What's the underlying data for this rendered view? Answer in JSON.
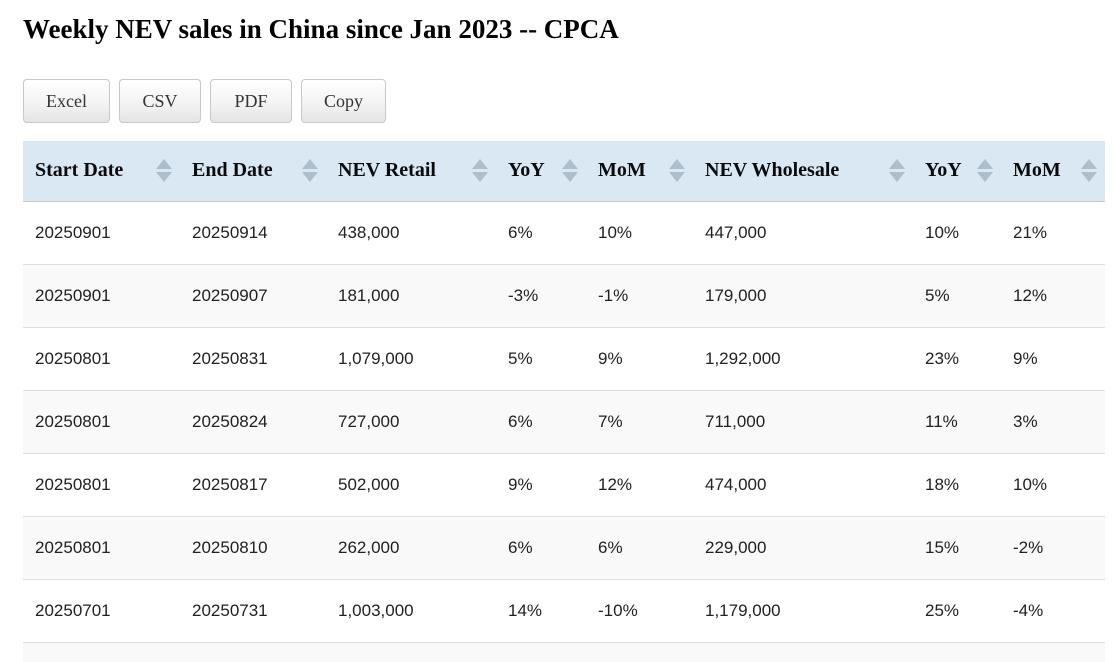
{
  "page": {
    "title": "Weekly NEV sales in China since Jan 2023 -- CPCA"
  },
  "toolbar": {
    "buttons": [
      {
        "key": "excel",
        "label": "Excel"
      },
      {
        "key": "csv",
        "label": "CSV"
      },
      {
        "key": "pdf",
        "label": "PDF"
      },
      {
        "key": "copy",
        "label": "Copy"
      }
    ]
  },
  "table": {
    "columns": [
      {
        "key": "start-date",
        "label": "Start Date",
        "sortable": true
      },
      {
        "key": "end-date",
        "label": "End Date",
        "sortable": true
      },
      {
        "key": "nev-retail",
        "label": "NEV Retail",
        "sortable": true
      },
      {
        "key": "yoy-retail",
        "label": "YoY",
        "sortable": true
      },
      {
        "key": "mom-retail",
        "label": "MoM",
        "sortable": true
      },
      {
        "key": "nev-wholesale",
        "label": "NEV Wholesale",
        "sortable": true
      },
      {
        "key": "yoy-wholesale",
        "label": "YoY",
        "sortable": true
      },
      {
        "key": "mom-wholesale",
        "label": "MoM",
        "sortable": true
      }
    ],
    "rows": [
      [
        "20250901",
        "20250914",
        "438,000",
        "6%",
        "10%",
        "447,000",
        "10%",
        "21%"
      ],
      [
        "20250901",
        "20250907",
        "181,000",
        "-3%",
        "-1%",
        "179,000",
        "5%",
        "12%"
      ],
      [
        "20250801",
        "20250831",
        "1,079,000",
        "5%",
        "9%",
        "1,292,000",
        "23%",
        "9%"
      ],
      [
        "20250801",
        "20250824",
        "727,000",
        "6%",
        "7%",
        "711,000",
        "11%",
        "3%"
      ],
      [
        "20250801",
        "20250817",
        "502,000",
        "9%",
        "12%",
        "474,000",
        "18%",
        "10%"
      ],
      [
        "20250801",
        "20250810",
        "262,000",
        "6%",
        "6%",
        "229,000",
        "15%",
        "-2%"
      ],
      [
        "20250701",
        "20250731",
        "1,003,000",
        "14%",
        "-10%",
        "1,179,000",
        "25%",
        "-4%"
      ]
    ]
  },
  "icons": {
    "sort": {
      "name": "sort-arrows-icon",
      "glyph": "▲▼"
    }
  },
  "colors": {
    "header_bg": "#d9e8f3",
    "header_border": "#c9c9c9",
    "sort_icon": "#aebecb",
    "stripe_row_bg": "#f9f9f9",
    "row_border": "#dddddd",
    "cell_text": "#212121",
    "button_border": "#c9c9c9"
  }
}
